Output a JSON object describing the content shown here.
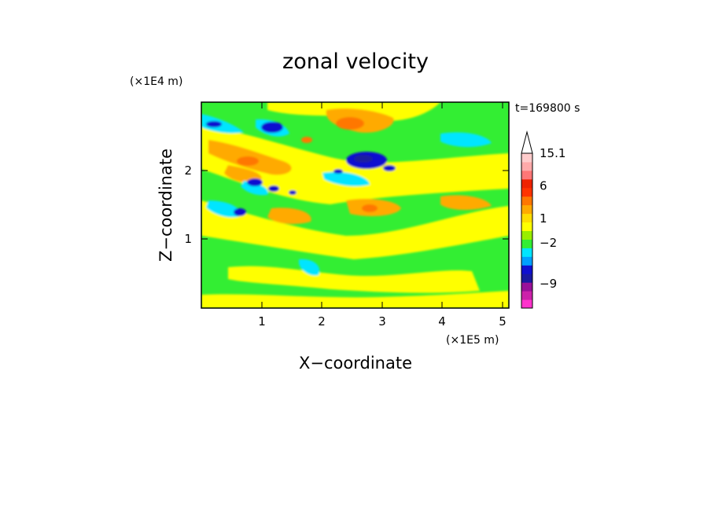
{
  "chart_data": {
    "type": "heatmap",
    "title": "zonal velocity",
    "xlabel": "X−coordinate",
    "ylabel": "Z−coordinate",
    "x_unit": "(×1E5 m)",
    "y_unit": "(×1E4 m)",
    "time_label": "t=169800 s",
    "xlim": [
      0,
      5.13
    ],
    "ylim": [
      0,
      2.98
    ],
    "x_ticks": [
      "1",
      "2",
      "3",
      "4",
      "5"
    ],
    "y_ticks": [
      "1",
      "2"
    ],
    "colorbar": {
      "levels": [
        -13.5,
        -12,
        -10.5,
        -9,
        -7.5,
        -6,
        -4.5,
        -3,
        -2,
        -1,
        0,
        1,
        2,
        3,
        4.5,
        6,
        7.5,
        9,
        12,
        15.1
      ],
      "labels": [
        "15.1",
        "6",
        "1",
        "−2",
        "−9"
      ],
      "label_values": [
        15.1,
        6,
        1,
        -2,
        -9
      ],
      "colors": [
        "#ff33cc",
        "#cc22aa",
        "#991199",
        "#1a1aa0",
        "#1010d0",
        "#00a0ff",
        "#00e5ff",
        "#33ee33",
        "#99ee00",
        "#ffff00",
        "#ffdd00",
        "#ffaa00",
        "#ff7700",
        "#ff3300",
        "#ee2200",
        "#ff7777",
        "#ffaaaa",
        "#ffcccc"
      ],
      "extend_max": true
    }
  }
}
